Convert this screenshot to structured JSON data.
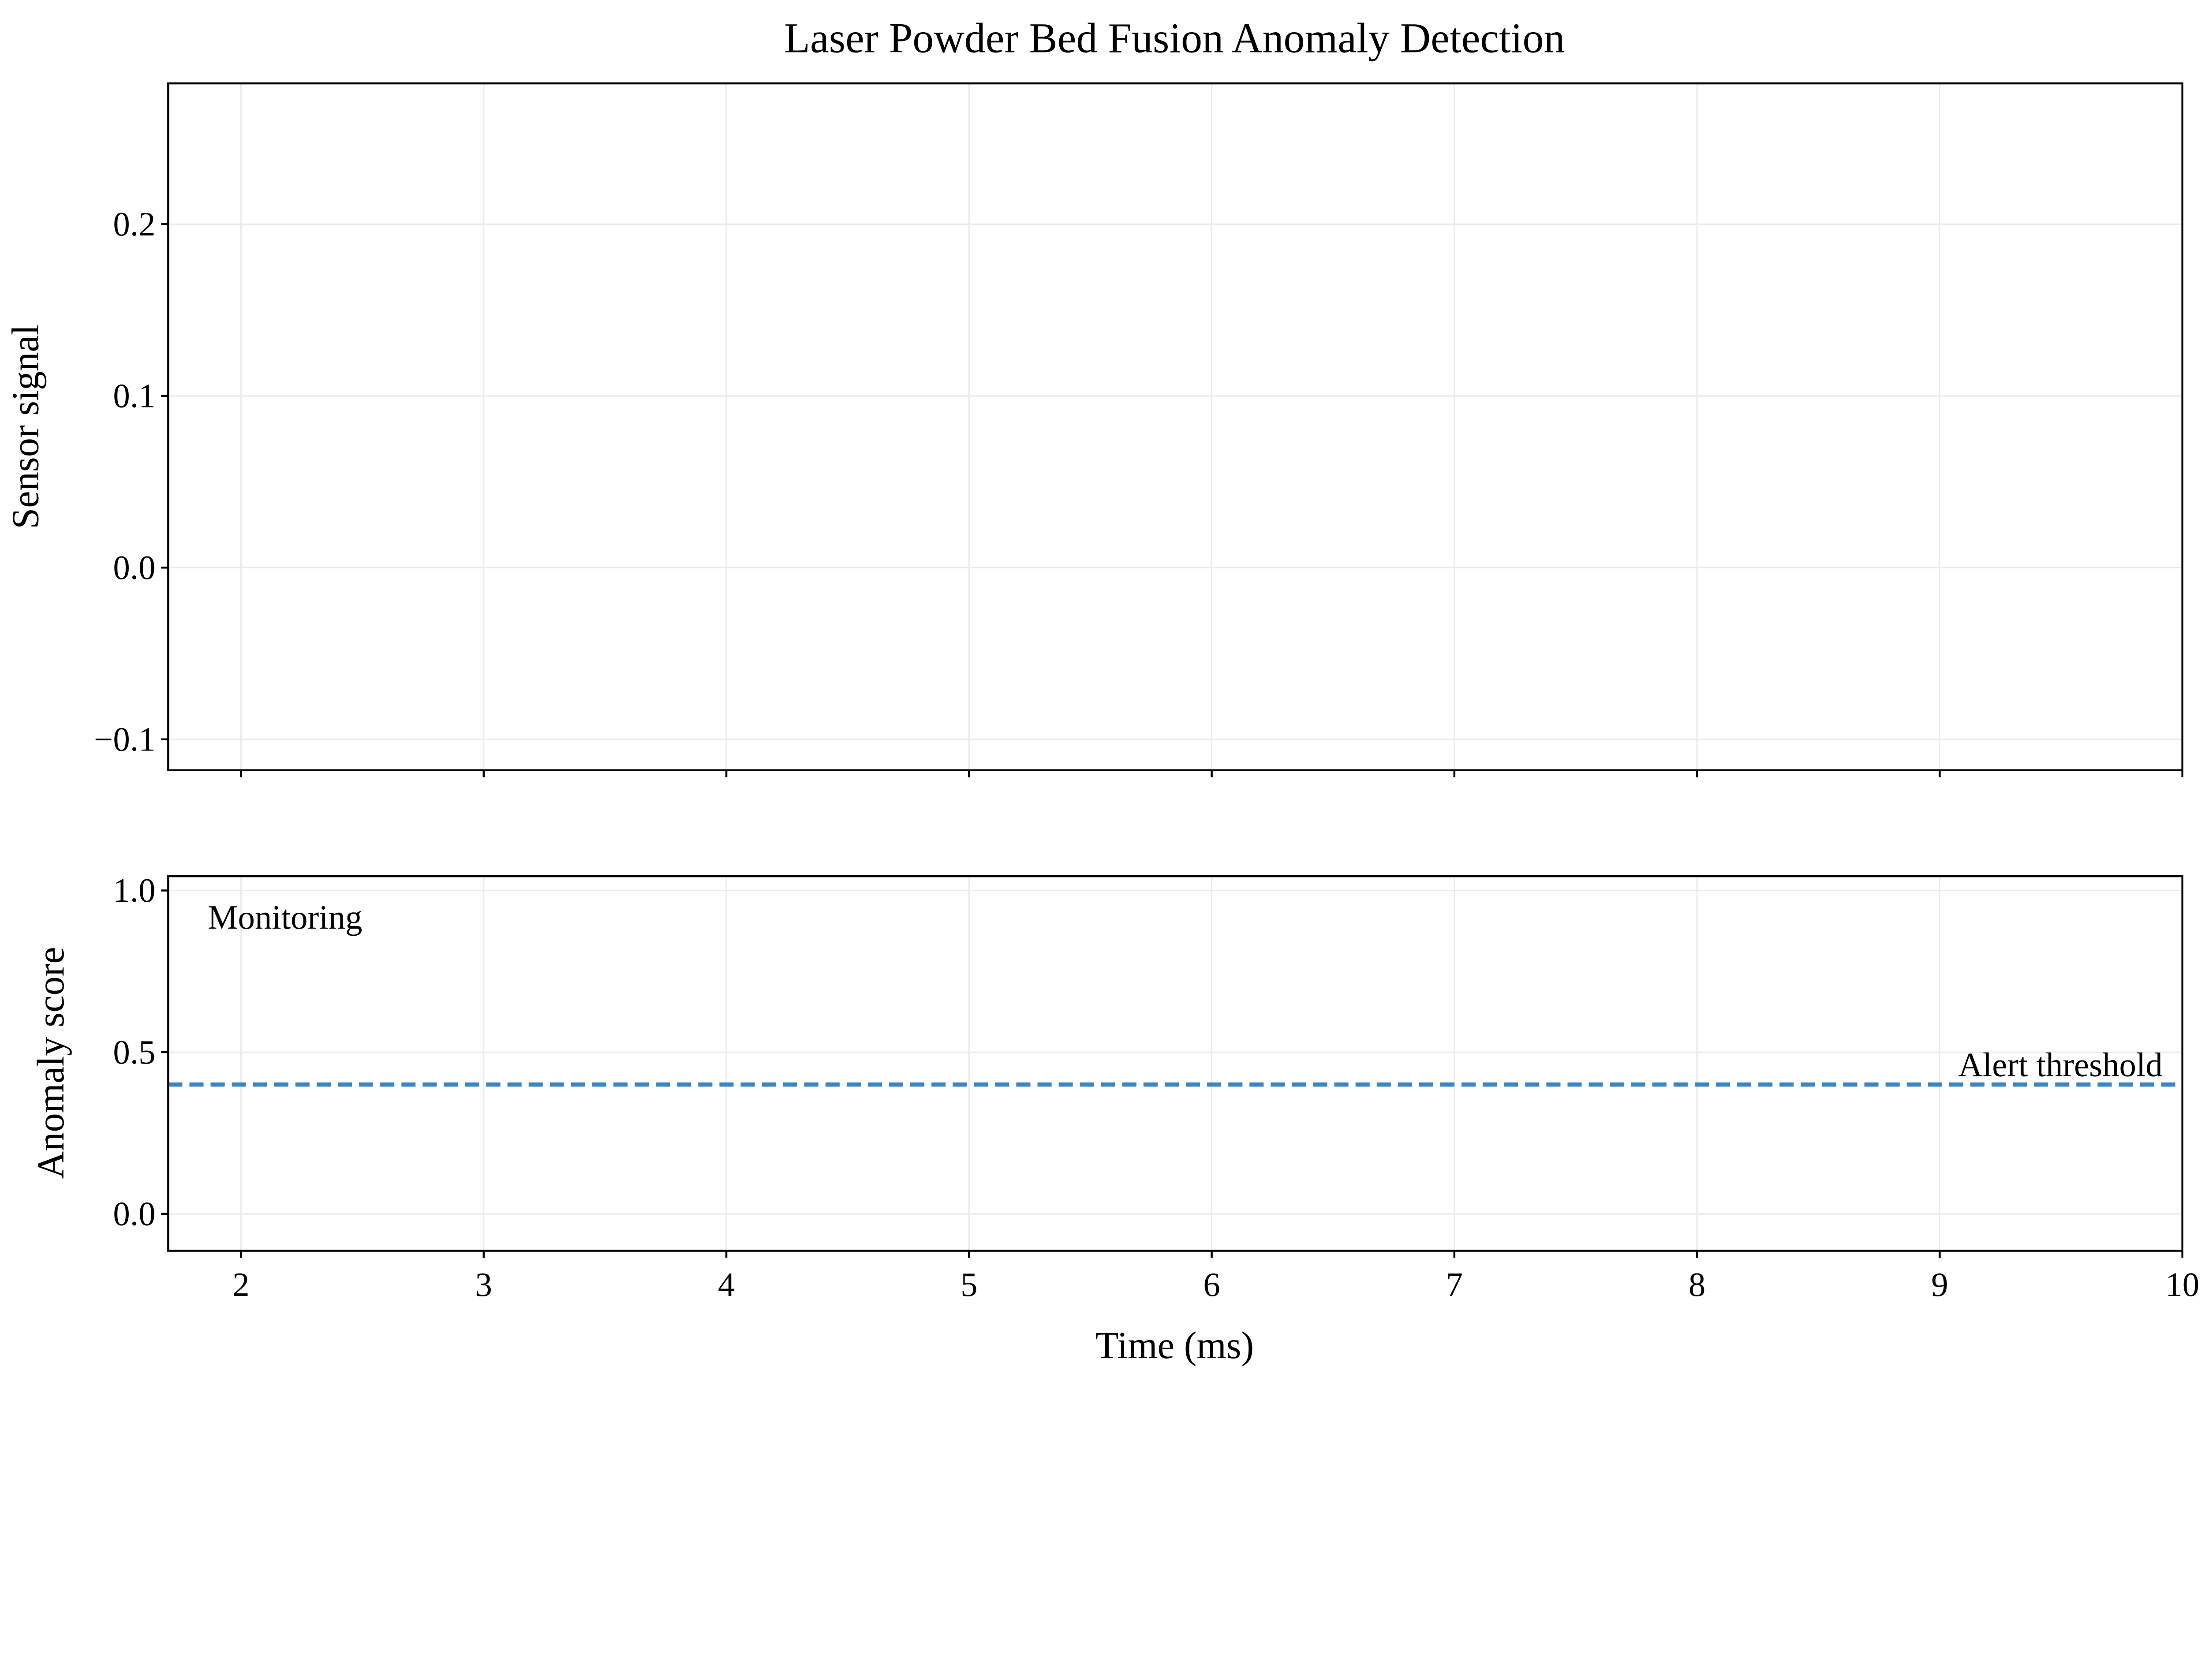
{
  "chart_data": [
    {
      "type": "line",
      "title": "Laser Powder Bed Fusion Anomaly Detection",
      "xlabel": "",
      "ylabel": "Sensor signal",
      "xlim": [
        1.7,
        10
      ],
      "ylim": [
        -0.118,
        0.282
      ],
      "xticks": [
        2,
        3,
        4,
        5,
        6,
        7,
        8,
        9,
        10
      ],
      "xtick_labels_visible": false,
      "yticks": [
        -0.1,
        0.0,
        0.1,
        0.2
      ],
      "ytick_labels": [
        "−0.1",
        "0.0",
        "0.1",
        "0.2"
      ],
      "grid": true,
      "series": []
    },
    {
      "type": "line",
      "xlabel": "Time (ms)",
      "ylabel": "Anomaly score",
      "xlim": [
        1.7,
        10
      ],
      "ylim": [
        -0.114,
        1.044
      ],
      "xticks": [
        2,
        3,
        4,
        5,
        6,
        7,
        8,
        9,
        10
      ],
      "xtick_labels": [
        "2",
        "3",
        "4",
        "5",
        "6",
        "7",
        "8",
        "9",
        "10"
      ],
      "yticks": [
        0.0,
        0.5,
        1.0
      ],
      "ytick_labels": [
        "0.0",
        "0.5",
        "1.0"
      ],
      "grid": true,
      "series": [],
      "threshold": {
        "value": 0.4,
        "label": "Alert threshold",
        "style": "dashed",
        "color": "#3a86c0"
      },
      "annotation": "Monitoring"
    }
  ]
}
